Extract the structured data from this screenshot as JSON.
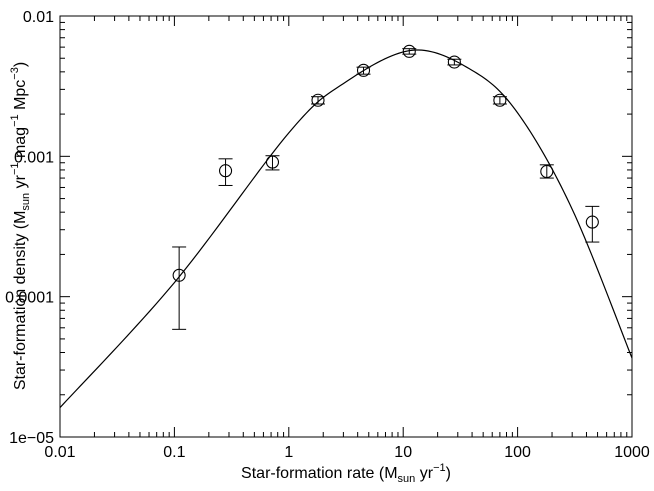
{
  "chart_data": {
    "type": "scatter",
    "title": "",
    "xlabel": {
      "text": "Star-formation rate (M",
      "sub": "sun",
      "mid": " yr",
      "sup": "−1",
      "end": ")"
    },
    "ylabel": {
      "text": "Star-formation density (M",
      "sub": "sun",
      "mid1": " yr",
      "sup1": "−1",
      "mid2": " mag",
      "sup2": "−1",
      "mid3": " Mpc",
      "sup3": "−3",
      "end": ")"
    },
    "x_scale": "log",
    "y_scale": "log",
    "xlim": [
      0.01,
      1000
    ],
    "ylim": [
      1e-05,
      0.01
    ],
    "x_ticks": [
      {
        "value": 0.01,
        "label": "0.01"
      },
      {
        "value": 0.1,
        "label": "0.1"
      },
      {
        "value": 1,
        "label": "1"
      },
      {
        "value": 10,
        "label": "10"
      },
      {
        "value": 100,
        "label": "100"
      },
      {
        "value": 1000,
        "label": "1000"
      }
    ],
    "y_ticks": [
      {
        "value": 1e-05,
        "label": "1e−05"
      },
      {
        "value": 0.0001,
        "label": "0.0001"
      },
      {
        "value": 0.001,
        "label": "0.001"
      },
      {
        "value": 0.01,
        "label": "0.01"
      }
    ],
    "grid": false,
    "points": [
      {
        "x": 0.11,
        "y": 0.000142,
        "y_low": 5.85e-05,
        "y_high": 0.000226
      },
      {
        "x": 0.28,
        "y": 0.00079,
        "y_low": 0.00062,
        "y_high": 0.00096
      },
      {
        "x": 0.72,
        "y": 0.00091,
        "y_low": 0.0008,
        "y_high": 0.00101
      },
      {
        "x": 1.8,
        "y": 0.00251,
        "y_low": 0.00236,
        "y_high": 0.00266
      },
      {
        "x": 4.5,
        "y": 0.0041,
        "y_low": 0.00385,
        "y_high": 0.00432
      },
      {
        "x": 11.3,
        "y": 0.0056,
        "y_low": 0.00535,
        "y_high": 0.00585
      },
      {
        "x": 28,
        "y": 0.0047,
        "y_low": 0.00448,
        "y_high": 0.00492
      },
      {
        "x": 70,
        "y": 0.00251,
        "y_low": 0.00236,
        "y_high": 0.00266
      },
      {
        "x": 180,
        "y": 0.00078,
        "y_low": 0.0007,
        "y_high": 0.00087
      },
      {
        "x": 450,
        "y": 0.00034,
        "y_low": 0.000245,
        "y_high": 0.00044
      }
    ],
    "fit_curve": {
      "x": [
        0.01,
        0.1,
        1,
        3,
        12,
        40,
        100,
        300,
        1000
      ],
      "y": [
        1.62e-05,
        0.000126,
        0.00147,
        0.0033,
        0.0057,
        0.0041,
        0.00204,
        0.00042,
        3.65e-05
      ]
    }
  }
}
